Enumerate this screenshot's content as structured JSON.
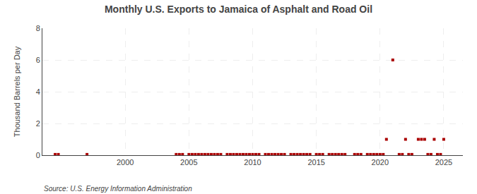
{
  "chart_data": {
    "type": "scatter",
    "title": "Monthly U.S. Exports to Jamaica of Asphalt and Road Oil",
    "ylabel": "Thousand Barrels per Day",
    "annotation": "Source: U.S. Energy Information Administration",
    "xlim": [
      1993.5,
      2026.5
    ],
    "ylim": [
      0,
      8
    ],
    "xticks": [
      2000,
      2005,
      2010,
      2015,
      2020,
      2025
    ],
    "yticks": [
      0,
      2,
      4,
      6,
      8
    ],
    "grid": true,
    "color": "#aa0000",
    "marker": "square",
    "x": [
      1994.5,
      1994.75,
      1997.0,
      2004.0,
      2004.25,
      2004.5,
      2005.0,
      2005.25,
      2005.5,
      2005.75,
      2006.0,
      2006.25,
      2006.5,
      2006.75,
      2007.0,
      2007.25,
      2007.5,
      2008.0,
      2008.25,
      2008.5,
      2008.75,
      2009.0,
      2009.25,
      2009.5,
      2009.75,
      2010.0,
      2010.25,
      2010.5,
      2011.0,
      2011.25,
      2011.5,
      2011.75,
      2012.0,
      2012.25,
      2012.5,
      2013.0,
      2013.25,
      2013.5,
      2013.75,
      2014.0,
      2014.25,
      2014.5,
      2015.0,
      2015.25,
      2015.5,
      2016.0,
      2016.25,
      2016.5,
      2016.75,
      2017.0,
      2017.25,
      2018.0,
      2018.25,
      2018.5,
      2019.0,
      2019.25,
      2019.5,
      2019.75,
      2020.0,
      2020.25,
      2020.5,
      2021.0,
      2021.5,
      2021.75,
      2022.0,
      2022.25,
      2022.5,
      2023.0,
      2023.25,
      2023.5,
      2023.75,
      2024.0,
      2024.25,
      2024.5,
      2024.75,
      2025.0
    ],
    "values": [
      0.05,
      0.05,
      0.05,
      0.05,
      0.05,
      0.05,
      0.05,
      0.05,
      0.05,
      0.05,
      0.05,
      0.05,
      0.05,
      0.05,
      0.05,
      0.05,
      0.05,
      0.05,
      0.05,
      0.05,
      0.05,
      0.05,
      0.05,
      0.05,
      0.05,
      0.05,
      0.05,
      0.05,
      0.05,
      0.05,
      0.05,
      0.05,
      0.05,
      0.05,
      0.05,
      0.05,
      0.05,
      0.05,
      0.05,
      0.05,
      0.05,
      0.05,
      0.05,
      0.05,
      0.05,
      0.05,
      0.05,
      0.05,
      0.05,
      0.05,
      0.05,
      0.05,
      0.05,
      0.05,
      0.05,
      0.05,
      0.05,
      0.05,
      0.05,
      0.05,
      1.0,
      6.0,
      0.05,
      0.05,
      1.0,
      0.05,
      0.05,
      1.0,
      1.0,
      1.0,
      0.05,
      0.05,
      1.0,
      0.05,
      0.05,
      1.0
    ]
  }
}
